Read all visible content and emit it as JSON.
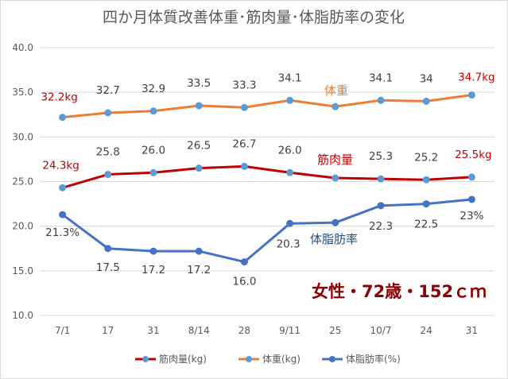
{
  "chart_data": {
    "type": "line",
    "title": "四か月体質改善体重･筋肉量･体脂肪率の変化",
    "categories": [
      "7/1",
      "17",
      "31",
      "8/14",
      "28",
      "9/11",
      "25",
      "10/7",
      "24",
      "31"
    ],
    "ylim": [
      10,
      40
    ],
    "yticks": [
      "10.0",
      "15.0",
      "20.0",
      "25.0",
      "30.0",
      "35.0",
      "40.0"
    ],
    "grid": true,
    "legend_position": "bottom",
    "series": [
      {
        "name": "筋肉量(kg)",
        "color": "#c00000",
        "marker_color": "#5b9bd5",
        "values": [
          24.3,
          25.8,
          26.0,
          26.5,
          26.7,
          26.0,
          25.4,
          25.3,
          25.2,
          25.5
        ],
        "labels": [
          "24.3kg",
          "25.8",
          "26.0",
          "26.5",
          "26.7",
          "26.0",
          "",
          "25.3",
          "25.2",
          "25.5kg"
        ],
        "label_color": "#404040",
        "end_label_color": "#c00000",
        "inline_label": "筋肉量"
      },
      {
        "name": "体重(kg)",
        "color": "#ed7d31",
        "marker_color": "#5b9bd5",
        "values": [
          32.2,
          32.7,
          32.9,
          33.5,
          33.3,
          34.1,
          33.4,
          34.1,
          34.0,
          34.7
        ],
        "labels": [
          "32.2kg",
          "32.7",
          "32.9",
          "33.5",
          "33.3",
          "34.1",
          "",
          "34.1",
          "34",
          "34.7kg"
        ],
        "label_color": "#404040",
        "end_label_color": "#c00000",
        "inline_label": "体重"
      },
      {
        "name": "体脂肪率(%)",
        "color": "#4472c4",
        "marker_color": "#4472c4",
        "values": [
          21.3,
          17.5,
          17.2,
          17.2,
          16.0,
          20.3,
          20.4,
          22.3,
          22.5,
          23.0
        ],
        "labels": [
          "21.3%",
          "17.5",
          "17.2",
          "17.2",
          "16.0",
          "20.3",
          "",
          "22.3",
          "22.5",
          "23%"
        ],
        "label_color": "#404040",
        "end_label_color": "#404040",
        "inline_label": "体脂肪率"
      }
    ],
    "annotation": "女性・72歳・152ｃｍ",
    "annotation_color": "#8b0000"
  }
}
